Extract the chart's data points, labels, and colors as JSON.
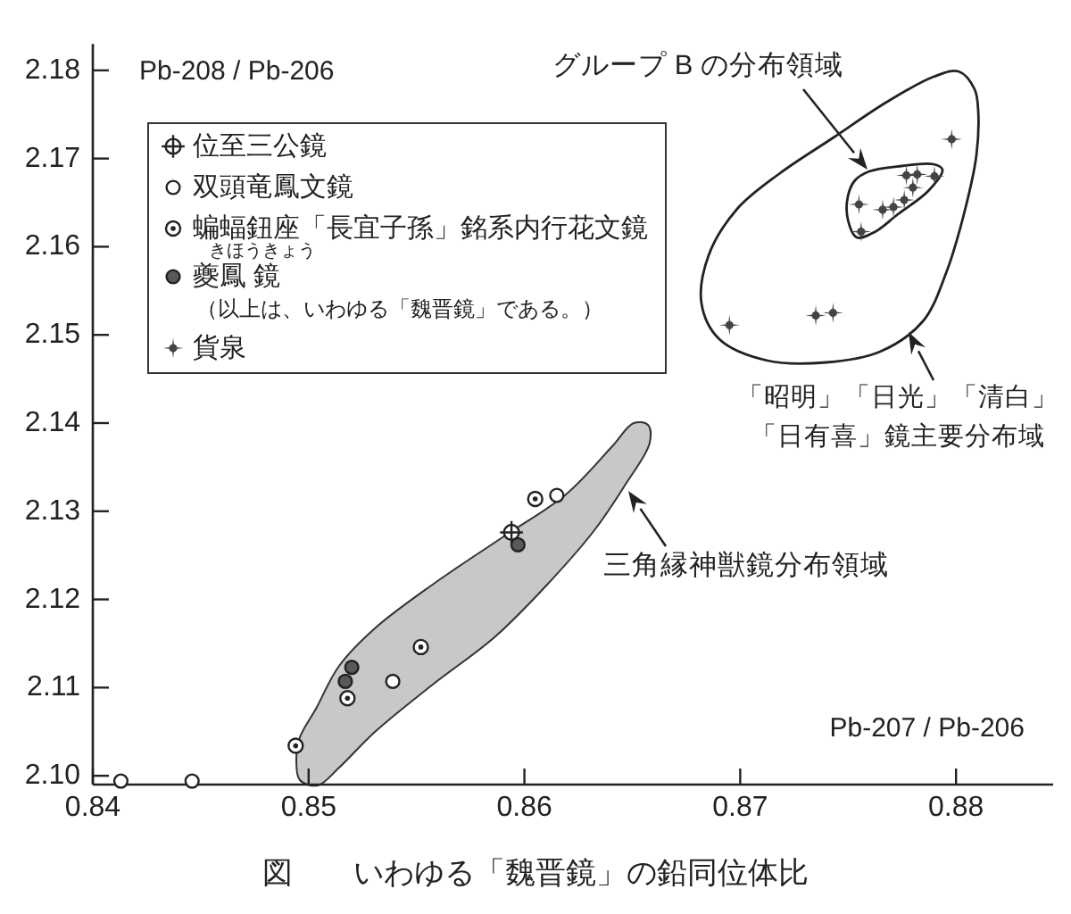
{
  "chart_data": {
    "type": "scatter",
    "title": "図　　いわゆる「魏晋鏡」の鉛同位体比",
    "xlabel": "Pb-207 / Pb-206",
    "ylabel": "Pb-208 / Pb-206",
    "xlim": [
      0.84,
      0.8845
    ],
    "xticks": [
      0.84,
      0.85,
      0.86,
      0.87,
      0.88
    ],
    "ylim": [
      2.099,
      2.183
    ],
    "yticks": [
      {
        "value": 2.1,
        "label": "2.10"
      },
      2.11,
      2.12,
      2.13,
      2.14,
      2.15,
      2.16,
      2.17,
      2.18
    ],
    "legend": "top left",
    "series": [
      {
        "name": "位至三公鏡",
        "marker": "cross",
        "color": "#222222",
        "x": [
          0.8594
        ],
        "values": [
          2.1276
        ]
      },
      {
        "name": "双頭竜鳳文鏡",
        "marker": "circle",
        "color": "#ffffff",
        "x": [
          0.8413,
          0.8446,
          0.8539,
          0.8615
        ],
        "values": [
          2.0994,
          2.0994,
          2.1107,
          2.1318
        ]
      },
      {
        "name": "蝙蝠鈕座「長宜子孫」銘系内行花文鏡",
        "marker": "circle-dot",
        "color": "#222222",
        "x": [
          0.8494,
          0.8518,
          0.8552,
          0.8605
        ],
        "values": [
          2.1034,
          2.1088,
          2.1146,
          2.1314
        ]
      },
      {
        "name": "夔鳳 鏡",
        "marker": "circle",
        "color": "#595959",
        "x": [
          0.8517,
          0.852,
          0.8597
        ],
        "values": [
          2.1107,
          2.1123,
          2.1262
        ]
      },
      {
        "name": "貨泉",
        "marker": "star",
        "color": "#444444",
        "x": [
          0.8798,
          0.8777,
          0.8782,
          0.879,
          0.878,
          0.8776,
          0.8771,
          0.8766,
          0.8755,
          0.8756,
          0.8735,
          0.8743,
          0.8695
        ],
        "values": [
          2.1722,
          2.1681,
          2.1682,
          2.168,
          2.1667,
          2.1653,
          2.1645,
          2.1642,
          2.1648,
          2.1617,
          2.1522,
          2.1525,
          2.1511
        ]
      }
    ],
    "annotations": [
      "きほうきょう",
      "（以上は、いわゆる「魏晋鏡」である。）",
      "グループ B の分布領域",
      "「昭明」「日光」「清白」「日有喜」鏡主要分布域",
      "三角縁神獣鏡分布領域"
    ]
  }
}
